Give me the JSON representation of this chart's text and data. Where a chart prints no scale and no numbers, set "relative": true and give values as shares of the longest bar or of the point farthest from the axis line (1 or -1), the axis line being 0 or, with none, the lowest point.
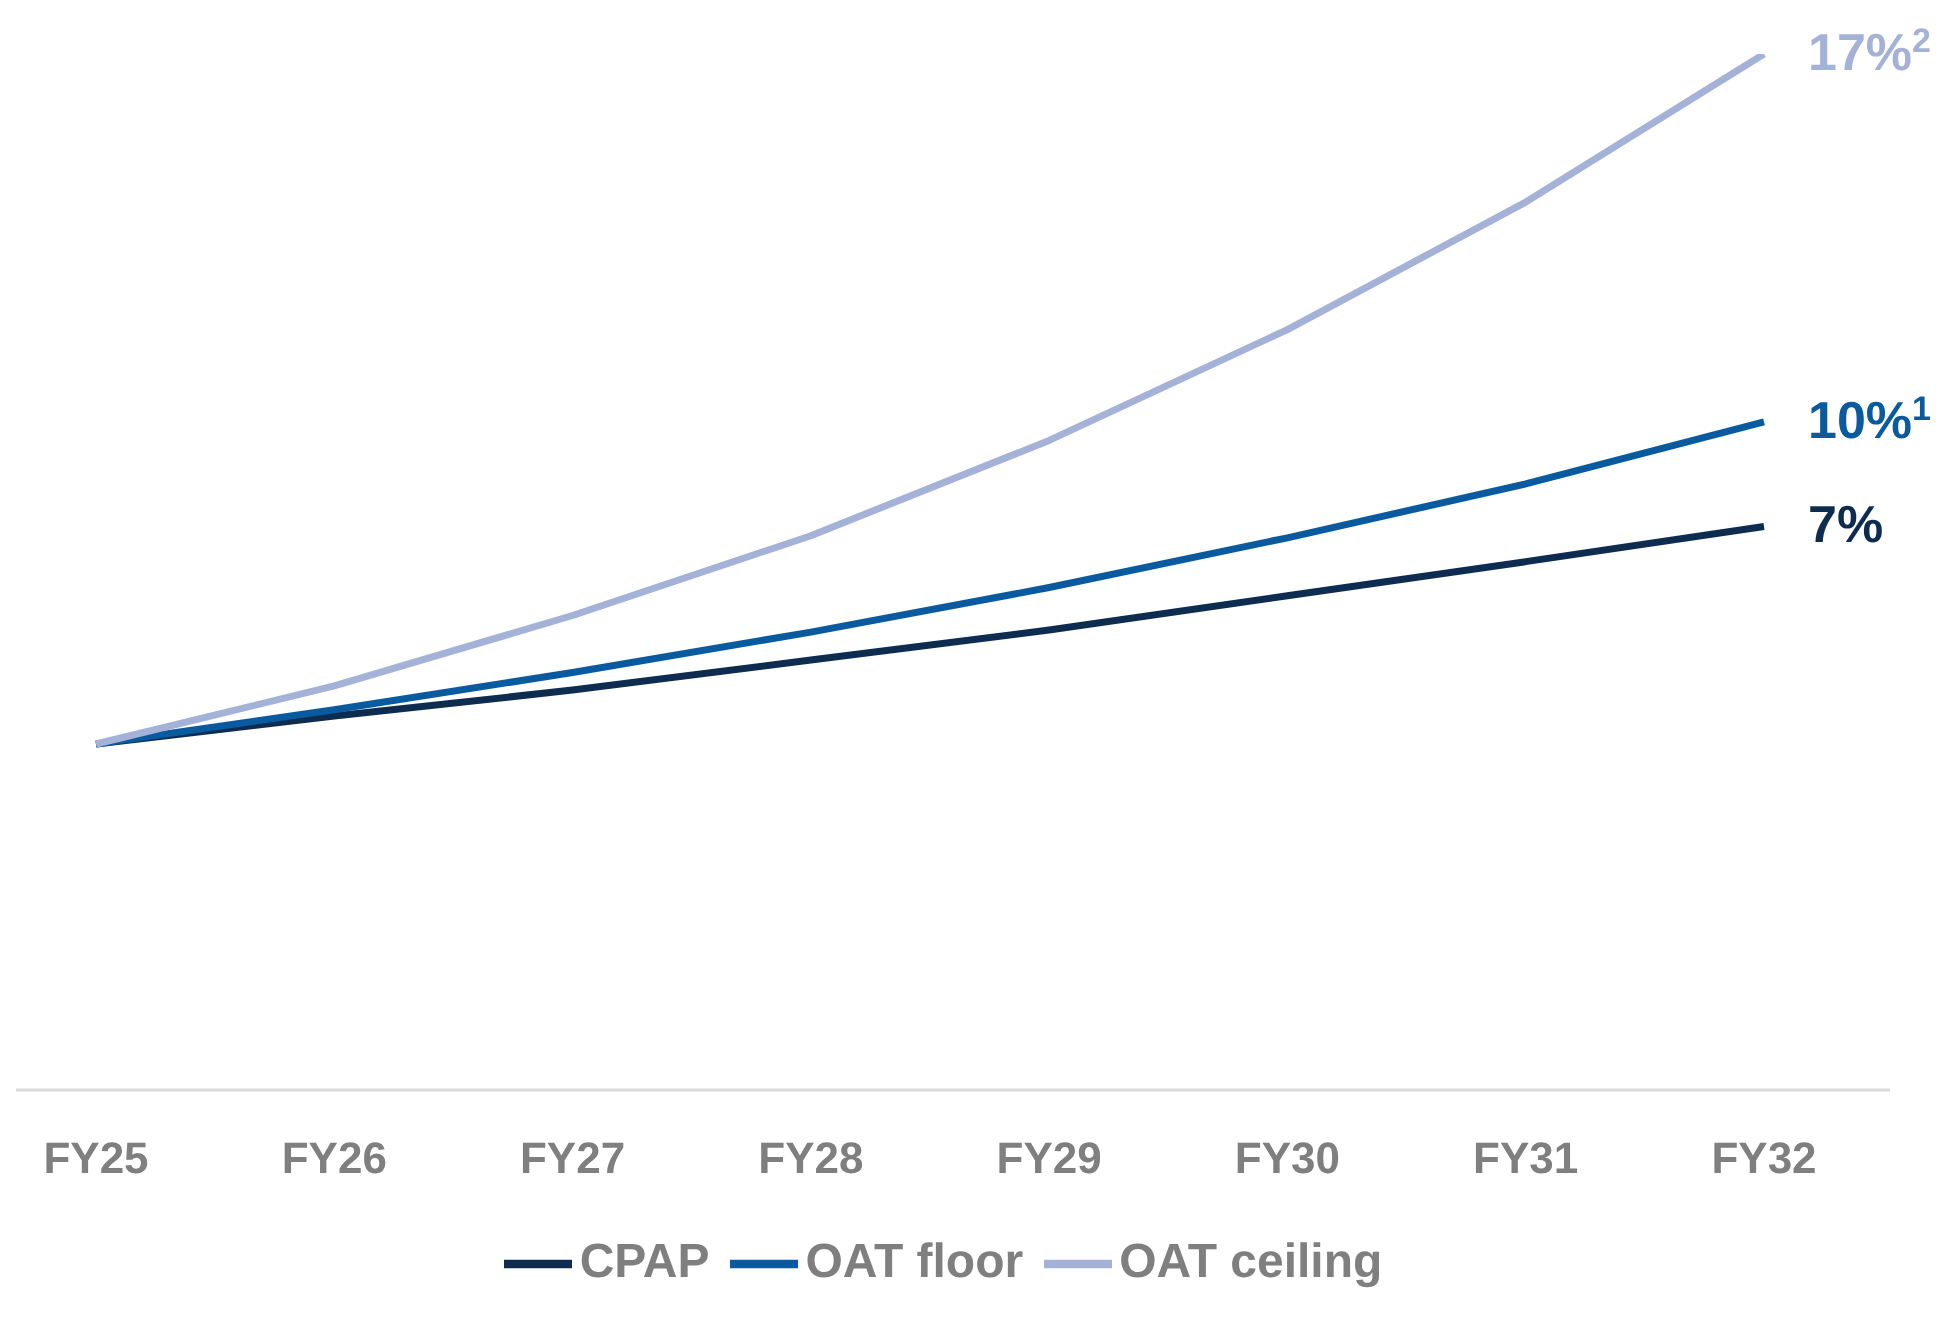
{
  "chart_data": {
    "type": "line",
    "relative": true,
    "categories": [
      "FY25",
      "FY26",
      "FY27",
      "FY28",
      "FY29",
      "FY30",
      "FY31",
      "FY32"
    ],
    "series": [
      {
        "name": "CPAP",
        "color": "#0d2c4f",
        "values": [
          0.334,
          0.361,
          0.386,
          0.415,
          0.444,
          0.477,
          0.51,
          0.544
        ]
      },
      {
        "name": "OAT floor",
        "color": "#0a5aa0",
        "values": [
          0.334,
          0.367,
          0.403,
          0.442,
          0.485,
          0.533,
          0.585,
          0.645
        ]
      },
      {
        "name": "OAT ceiling",
        "color": "#a5b2d8",
        "values": [
          0.334,
          0.39,
          0.458,
          0.535,
          0.627,
          0.734,
          0.857,
          1
        ]
      }
    ],
    "annotations": [
      {
        "text": "17%$^{2}$",
        "x": "FY32",
        "y": 1
      },
      {
        "text": "10%$^{1}$",
        "x": "FY32",
        "y": 0.645
      },
      {
        "text": "7%",
        "x": "FY32",
        "y": 0.544
      }
    ],
    "legend": "bottom",
    "grid": false,
    "marker": "none",
    "line_style": "solid"
  }
}
